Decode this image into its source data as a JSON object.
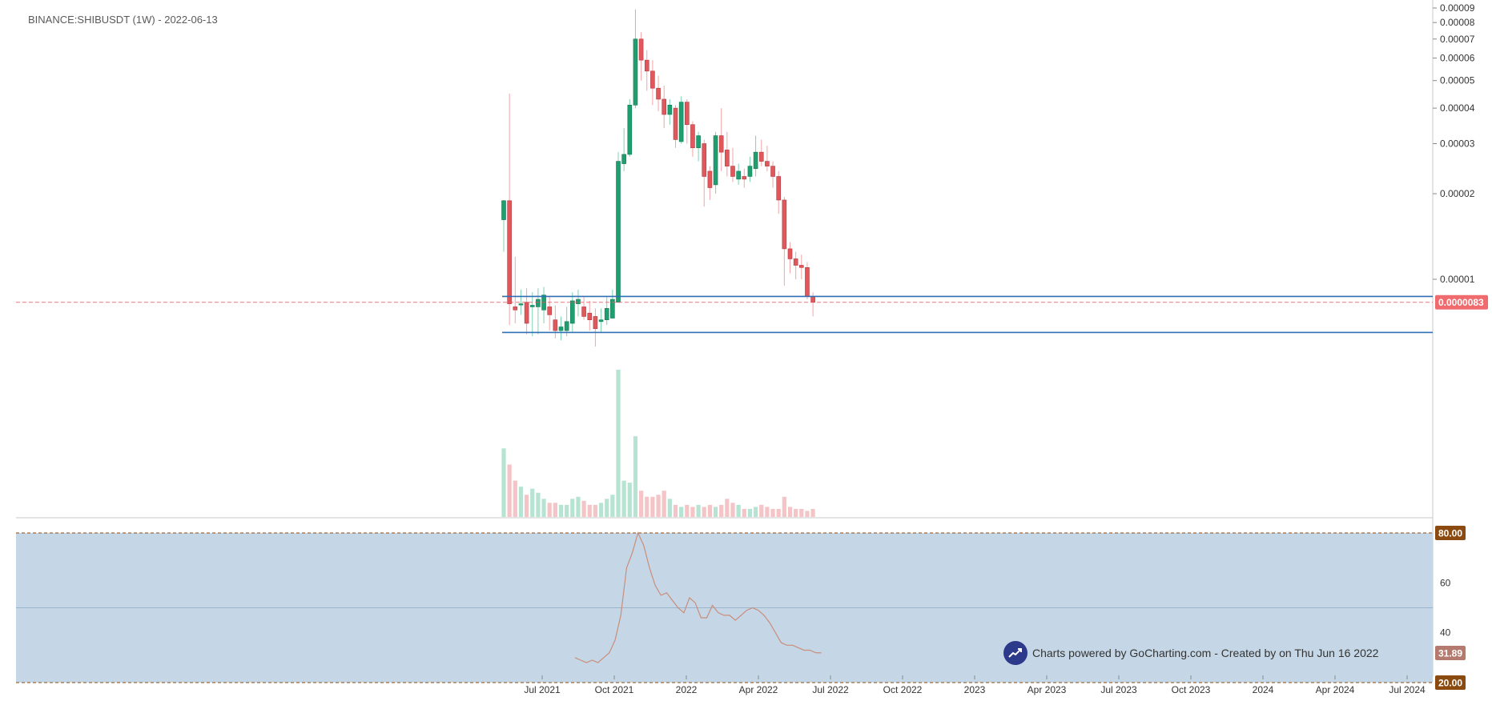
{
  "header": {
    "title": "BINANCE:SHIBUSDT (1W) - 2022-06-13"
  },
  "credit": {
    "text": "Charts powered by GoCharting.com - Created by  on Thu Jun 16 2022",
    "icon": "trend-up-icon"
  },
  "colors": {
    "up": "#1f9e6f",
    "down": "#e0575c",
    "upVol": "#b7e4d2",
    "downVol": "#f5c4c6",
    "hline": "#2f6fb3",
    "rsiLine": "#c98d7b",
    "rsiBand": "#c5d7e6",
    "rsiBadge": "#8b4a0f"
  },
  "chart_data": [
    {
      "type": "candlestick",
      "title": "BINANCE:SHIBUSDT (1W) - 2022-06-13",
      "y_scale": "log",
      "y_ticks": [
        "0.00009",
        "0.00008",
        "0.00007",
        "0.00006",
        "0.00005",
        "0.00004",
        "0.00003",
        "0.00002",
        "0.00001"
      ],
      "x_ticks": [
        "Jul 2021",
        "Oct 2021",
        "2022",
        "Apr 2022",
        "Jul 2022",
        "Oct 2022",
        "2023",
        "Apr 2023",
        "Jul 2023",
        "Oct 2023",
        "2024",
        "Apr 2024",
        "Jul 2024"
      ],
      "last_price_label": "0.0000083",
      "horizontal_lines": [
        8.7e-06,
        6.5e-06
      ],
      "candles_ohlc": [
        [
          1.62e-05,
          1.89e-05,
          1.25e-05,
          1.9e-05
        ],
        [
          1.89e-05,
          8.2e-06,
          6.9e-06,
          4.5e-05
        ],
        [
          8e-06,
          7.8e-06,
          7e-06,
          1.2e-05
        ],
        [
          8.2e-06,
          8.2e-06,
          7.5e-06,
          9.2e-06
        ],
        [
          8.3e-06,
          7e-06,
          6.4e-06,
          9.3e-06
        ],
        [
          8e-06,
          8.1e-06,
          6.3e-06,
          9e-06
        ],
        [
          8e-06,
          8.5e-06,
          6.4e-06,
          9.3e-06
        ],
        [
          7.8e-06,
          8.8e-06,
          7e-06,
          9.4e-06
        ],
        [
          8e-06,
          7.5e-06,
          6.6e-06,
          8.7e-06
        ],
        [
          7.2e-06,
          6.6e-06,
          6.2e-06,
          8.1e-06
        ],
        [
          6.6e-06,
          6.8e-06,
          6.1e-06,
          7.4e-06
        ],
        [
          6.6e-06,
          7.1e-06,
          6.3e-06,
          8e-06
        ],
        [
          7e-06,
          8.4e-06,
          6.5e-06,
          9e-06
        ],
        [
          8.2e-06,
          8.5e-06,
          7.4e-06,
          9.2e-06
        ],
        [
          8e-06,
          7.4e-06,
          7.2e-06,
          8.7e-06
        ],
        [
          7.6e-06,
          7.2e-06,
          6.6e-06,
          8.4e-06
        ],
        [
          7.4e-06,
          6.7e-06,
          5.8e-06,
          7.9e-06
        ],
        [
          7.1e-06,
          7.2e-06,
          6.5e-06,
          7.9e-06
        ],
        [
          7.2e-06,
          7.9e-06,
          6.9e-06,
          8.7e-06
        ],
        [
          7.3e-06,
          8.5e-06,
          7.3e-06,
          9.2e-06
        ],
        [
          8.3e-06,
          2.6e-05,
          8.3e-06,
          2.8e-05
        ],
        [
          2.55e-05,
          2.75e-05,
          2.4e-05,
          3.4e-05
        ],
        [
          2.75e-05,
          4.1e-05,
          2.7e-05,
          4.3e-05
        ],
        [
          4.1e-05,
          7e-05,
          4e-05,
          8.9e-05
        ],
        [
          7e-05,
          5.9e-05,
          5e-05,
          7.4e-05
        ],
        [
          5.9e-05,
          5.4e-05,
          4.6e-05,
          6.4e-05
        ],
        [
          5.4e-05,
          4.7e-05,
          4.1e-05,
          5.9e-05
        ],
        [
          4.7e-05,
          4.3e-05,
          3.9e-05,
          5.2e-05
        ],
        [
          4.3e-05,
          3.8e-05,
          3.4e-05,
          4.8e-05
        ],
        [
          3.8e-05,
          4.1e-05,
          3.5e-05,
          4.3e-05
        ],
        [
          4e-05,
          3.1e-05,
          2.9e-05,
          4.1e-05
        ],
        [
          3.05e-05,
          4.2e-05,
          3e-05,
          4.4e-05
        ],
        [
          4.2e-05,
          3.5e-05,
          3e-05,
          4.3e-05
        ],
        [
          3.5e-05,
          2.9e-05,
          2.7e-05,
          3.6e-05
        ],
        [
          2.9e-05,
          3.2e-05,
          2.6e-05,
          3.3e-05
        ],
        [
          3e-05,
          2.3e-05,
          1.8e-05,
          3.1e-05
        ],
        [
          2.4e-05,
          2.1e-05,
          1.9e-05,
          2.5e-05
        ],
        [
          2.15e-05,
          3.2e-05,
          2e-05,
          3.3e-05
        ],
        [
          3.2e-05,
          2.8e-05,
          2.4e-05,
          4e-05
        ],
        [
          2.85e-05,
          2.5e-05,
          2.3e-05,
          3.3e-05
        ],
        [
          2.5e-05,
          2.3e-05,
          2.2e-05,
          2.9e-05
        ],
        [
          2.25e-05,
          2.4e-05,
          2.15e-05,
          2.55e-05
        ],
        [
          2.3e-05,
          2.25e-05,
          2.1e-05,
          2.45e-05
        ],
        [
          2.3e-05,
          2.5e-05,
          2.2e-05,
          2.7e-05
        ],
        [
          2.45e-05,
          2.8e-05,
          2.3e-05,
          3.2e-05
        ],
        [
          2.8e-05,
          2.6e-05,
          2.5e-05,
          3.1e-05
        ],
        [
          2.6e-05,
          2.5e-05,
          2.4e-05,
          2.95e-05
        ],
        [
          2.5e-05,
          2.3e-05,
          2.1e-05,
          2.6e-05
        ],
        [
          2.3e-05,
          1.9e-05,
          1.7e-05,
          2.4e-05
        ],
        [
          1.9e-05,
          1.28e-05,
          9.5e-06,
          1.95e-05
        ],
        [
          1.28e-05,
          1.18e-05,
          1.05e-05,
          1.35e-05
        ],
        [
          1.18e-05,
          1.12e-05,
          1e-05,
          1.25e-05
        ],
        [
          1.12e-05,
          1.1e-05,
          1e-05,
          1.22e-05
        ],
        [
          1.1e-05,
          8.7e-06,
          8.5e-06,
          1.15e-05
        ],
        [
          8.7e-06,
          8.3e-06,
          7.4e-06,
          9e-06
        ]
      ],
      "candles_note": "each entry is [open, close, low, high] in USDT, weekly from Jun 2021 to Jun 2022",
      "volume": [
        34,
        26,
        18,
        15,
        11,
        14,
        12,
        9,
        7,
        7,
        6,
        6,
        9,
        10,
        8,
        6,
        6,
        7,
        9,
        11,
        73,
        18,
        17,
        40,
        13,
        10,
        10,
        11,
        13,
        9,
        6,
        5,
        6,
        5,
        6,
        5,
        6,
        5,
        6,
        9,
        7,
        6,
        4,
        4,
        5,
        6,
        5,
        4,
        4,
        10,
        5,
        4,
        4,
        3,
        4
      ]
    },
    {
      "type": "line",
      "series": [
        {
          "values": [
            30,
            29,
            28,
            29,
            28,
            30,
            32,
            37,
            47,
            66,
            72,
            80,
            75,
            66,
            59,
            55,
            56,
            53,
            50,
            48,
            54,
            52,
            46,
            46,
            51,
            48,
            47,
            47,
            45,
            47,
            49,
            50,
            49,
            47,
            44,
            40,
            36,
            35,
            35,
            34,
            33,
            33,
            32,
            31.89
          ]
        }
      ],
      "y_ticks": [
        "80.00",
        "60",
        "40",
        "20.00"
      ],
      "ylim": [
        20,
        85
      ],
      "band": [
        20,
        80
      ],
      "midline": 50,
      "last_value_label": "31.89"
    }
  ]
}
